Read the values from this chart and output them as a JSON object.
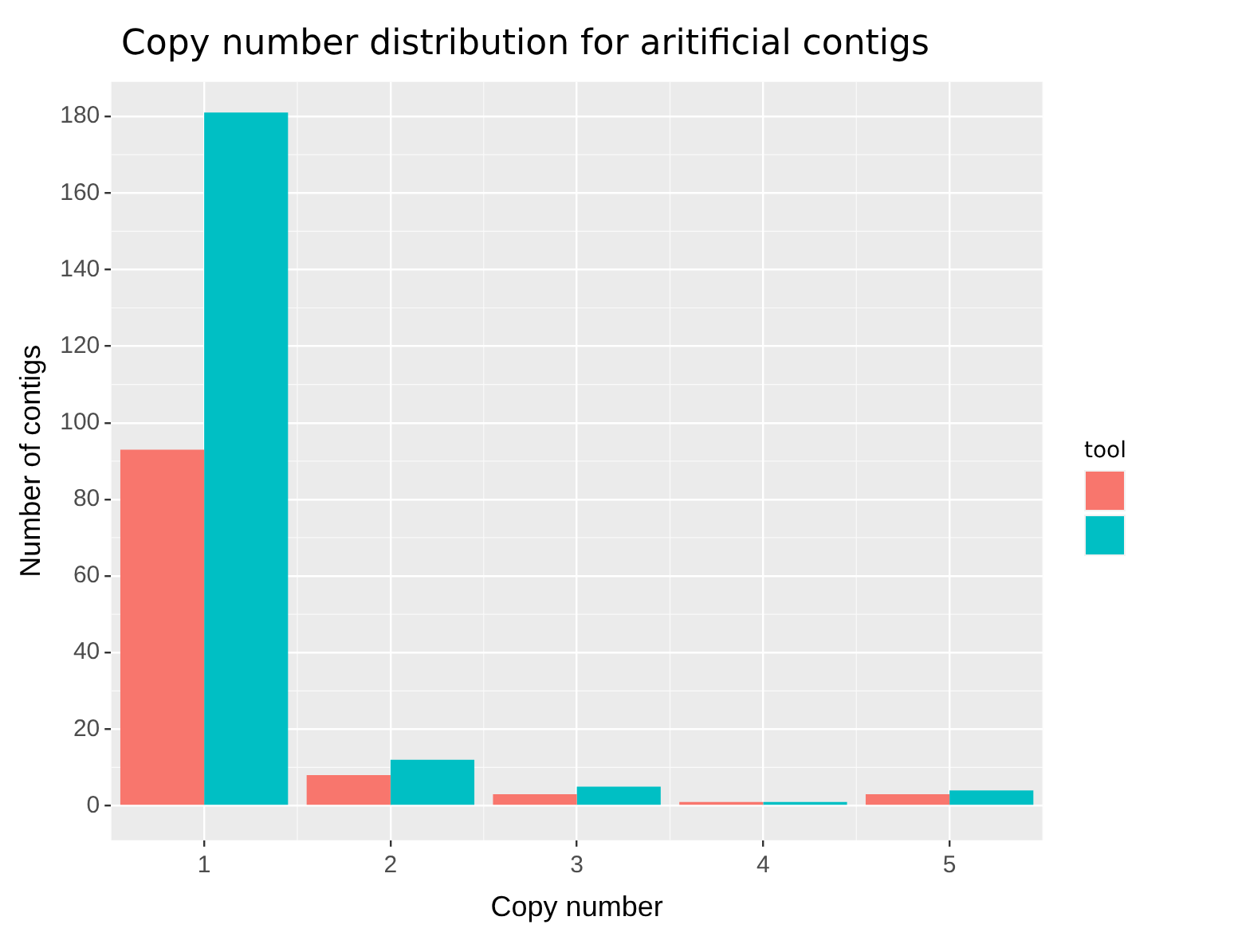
{
  "chart_data": {
    "type": "bar",
    "title": "Copy number distribution for aritificial contigs",
    "xlabel": "Copy number",
    "ylabel": "Number of contigs",
    "legend_title": "tool",
    "categories": [
      "1",
      "2",
      "3",
      "4",
      "5"
    ],
    "series": [
      {
        "color": "#f8766d",
        "values": [
          93,
          8,
          3,
          1,
          3
        ]
      },
      {
        "color": "#00bfc4",
        "values": [
          181,
          12,
          5,
          1,
          4
        ]
      }
    ],
    "ylim": [
      -9,
      189
    ],
    "yticks": [
      0,
      20,
      40,
      60,
      80,
      100,
      120,
      140,
      160,
      180
    ],
    "grid": true
  }
}
